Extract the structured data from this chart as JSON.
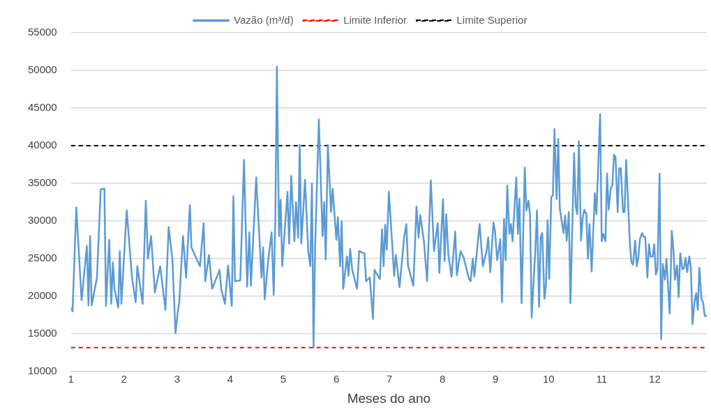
{
  "chart_data": {
    "type": "line",
    "xlabel": "Meses do ano",
    "xlim": [
      1,
      12.98
    ],
    "xticks": [
      1,
      2,
      3,
      4,
      5,
      6,
      7,
      8,
      9,
      10,
      11,
      12
    ],
    "ylim": [
      10000,
      55000
    ],
    "yticks": [
      10000,
      15000,
      20000,
      25000,
      30000,
      35000,
      40000,
      45000,
      50000,
      55000
    ],
    "grid": "y",
    "legend": "top",
    "marker": "none",
    "line_style": "solid",
    "ref_lines": [
      {
        "axis": "y",
        "value": 13200,
        "label": "Limite Inferior",
        "color": "#ff0000",
        "line_style": "dashed"
      },
      {
        "axis": "y",
        "value": 40000,
        "label": "Limite Superior",
        "color": "#000000",
        "line_style": "dashed"
      }
    ],
    "series": [
      {
        "name": "Vazão (m³/d)",
        "color": "#5b9bd5",
        "x": [
          1.0,
          1.03,
          1.1,
          1.2,
          1.3,
          1.33,
          1.36,
          1.39,
          1.49,
          1.56,
          1.63,
          1.66,
          1.72,
          1.76,
          1.79,
          1.82,
          1.89,
          1.92,
          1.95,
          2.05,
          2.15,
          2.22,
          2.25,
          2.35,
          2.41,
          2.45,
          2.51,
          2.58,
          2.68,
          2.78,
          2.84,
          2.91,
          2.97,
          3.01,
          3.04,
          3.11,
          3.17,
          3.24,
          3.27,
          3.43,
          3.5,
          3.53,
          3.6,
          3.66,
          3.8,
          3.83,
          3.9,
          3.96,
          4.03,
          4.06,
          4.09,
          4.19,
          4.26,
          4.32,
          4.36,
          4.39,
          4.45,
          4.49,
          4.59,
          4.62,
          4.65,
          4.72,
          4.78,
          4.82,
          4.85,
          4.88,
          4.92,
          4.95,
          4.98,
          5.08,
          5.11,
          5.15,
          5.21,
          5.24,
          5.28,
          5.31,
          5.34,
          5.41,
          5.47,
          5.51,
          5.54,
          5.57,
          5.6,
          5.67,
          5.74,
          5.77,
          5.8,
          5.84,
          5.9,
          5.93,
          6.0,
          6.03,
          6.07,
          6.1,
          6.13,
          6.2,
          6.23,
          6.26,
          6.3,
          6.39,
          6.43,
          6.53,
          6.56,
          6.63,
          6.69,
          6.72,
          6.82,
          6.86,
          6.89,
          6.92,
          6.95,
          6.99,
          7.09,
          7.12,
          7.19,
          7.28,
          7.32,
          7.35,
          7.45,
          7.51,
          7.55,
          7.58,
          7.65,
          7.71,
          7.78,
          7.84,
          7.91,
          7.94,
          8.01,
          8.04,
          8.07,
          8.11,
          8.17,
          8.24,
          8.27,
          8.34,
          8.4,
          8.5,
          8.53,
          8.57,
          8.6,
          8.7,
          8.76,
          8.83,
          8.86,
          8.9,
          8.96,
          8.99,
          9.03,
          9.09,
          9.12,
          9.16,
          9.19,
          9.22,
          9.26,
          9.29,
          9.32,
          9.39,
          9.42,
          9.45,
          9.49,
          9.55,
          9.58,
          9.62,
          9.65,
          9.68,
          9.75,
          9.78,
          9.82,
          9.85,
          9.88,
          9.92,
          9.95,
          9.98,
          10.01,
          10.05,
          10.08,
          10.11,
          10.15,
          10.18,
          10.21,
          10.28,
          10.31,
          10.34,
          10.38,
          10.41,
          10.48,
          10.51,
          10.54,
          10.57,
          10.61,
          10.64,
          10.67,
          10.71,
          10.74,
          10.77,
          10.81,
          10.87,
          10.9,
          10.97,
          11.0,
          11.03,
          11.07,
          11.1,
          11.13,
          11.17,
          11.2,
          11.23,
          11.26,
          11.3,
          11.33,
          11.36,
          11.4,
          11.43,
          11.46,
          11.53,
          11.56,
          11.59,
          11.63,
          11.66,
          11.69,
          11.72,
          11.76,
          11.79,
          11.82,
          11.86,
          11.89,
          11.92,
          11.96,
          11.99,
          12.02,
          12.05,
          12.09,
          12.12,
          12.15,
          12.19,
          12.22,
          12.28,
          12.32,
          12.35,
          12.38,
          12.42,
          12.45,
          12.48,
          12.52,
          12.55,
          12.58,
          12.61,
          12.65,
          12.68,
          12.71,
          12.75,
          12.78,
          12.81,
          12.84,
          12.88,
          12.91,
          12.94,
          12.98
        ],
        "values": [
          18500,
          18000,
          31800,
          19500,
          26700,
          18800,
          28000,
          18800,
          22500,
          34200,
          34300,
          18700,
          27500,
          19000,
          24500,
          21000,
          18500,
          26000,
          19000,
          31400,
          22500,
          19200,
          24000,
          19000,
          32700,
          25000,
          28000,
          20500,
          24000,
          18200,
          29200,
          25000,
          15100,
          17800,
          19200,
          28000,
          22500,
          32100,
          26500,
          24000,
          29700,
          22000,
          25500,
          21000,
          23500,
          21000,
          19000,
          24100,
          18700,
          33300,
          22000,
          22100,
          38100,
          21300,
          28500,
          21400,
          30000,
          35800,
          22500,
          26500,
          19600,
          25100,
          28500,
          20200,
          30000,
          50500,
          28000,
          32800,
          24000,
          33900,
          27000,
          36000,
          27300,
          32500,
          27800,
          40100,
          27000,
          35500,
          26000,
          24000,
          35000,
          13200,
          26500,
          43500,
          28000,
          32500,
          24900,
          40100,
          31200,
          34300,
          27500,
          30500,
          24000,
          30000,
          21000,
          25300,
          22700,
          26300,
          23500,
          21000,
          26000,
          25700,
          22000,
          22500,
          17000,
          23500,
          22300,
          28900,
          24000,
          29500,
          26200,
          33900,
          22700,
          25500,
          21200,
          28000,
          29600,
          24100,
          21400,
          31900,
          27800,
          30800,
          27300,
          22000,
          35400,
          26000,
          29700,
          23100,
          32900,
          24700,
          30900,
          25600,
          22600,
          28600,
          22800,
          26000,
          25100,
          22300,
          22000,
          25000,
          22600,
          29600,
          24000,
          26000,
          27800,
          23200,
          29800,
          28600,
          24800,
          27600,
          19200,
          30300,
          24800,
          34700,
          28300,
          29600,
          27300,
          35800,
          28300,
          33000,
          19100,
          37100,
          31400,
          32700,
          30700,
          17200,
          26300,
          31400,
          18600,
          27900,
          28400,
          19700,
          21500,
          30100,
          22300,
          33200,
          33400,
          42200,
          32900,
          40900,
          31700,
          28400,
          30700,
          27400,
          31200,
          19100,
          39000,
          32000,
          30900,
          40600,
          27400,
          30300,
          31500,
          30900,
          25000,
          29600,
          23300,
          33700,
          30900,
          44200,
          27300,
          28300,
          27300,
          36300,
          31500,
          34400,
          34700,
          38800,
          38500,
          31200,
          37000,
          37000,
          31200,
          31200,
          38100,
          27100,
          24500,
          24200,
          27400,
          24000,
          25200,
          27600,
          28400,
          27900,
          27900,
          22500,
          26900,
          25300,
          25300,
          26900,
          22900,
          23700,
          36300,
          14300,
          24300,
          22200,
          25000,
          17700,
          28700,
          26300,
          22200,
          24100,
          19900,
          25700,
          23600,
          23700,
          25100,
          23200,
          25300,
          23800,
          16300,
          19400,
          20400,
          18200,
          23800,
          19600,
          19200,
          17400,
          17400
        ]
      }
    ]
  }
}
